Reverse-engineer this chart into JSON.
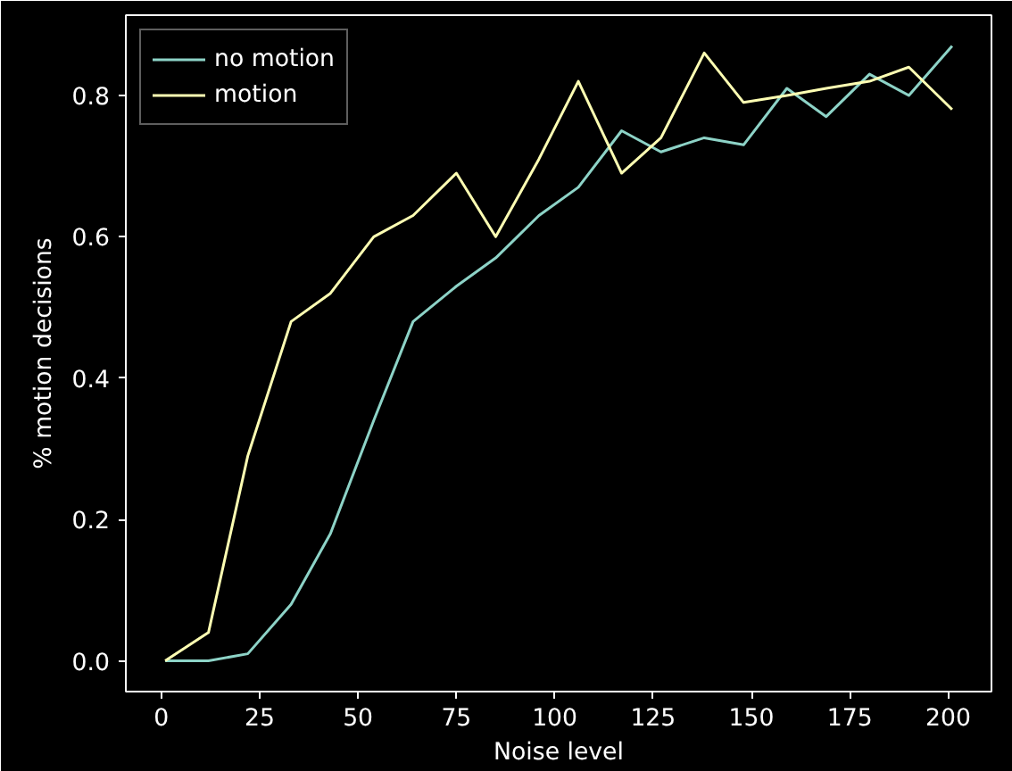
{
  "chart_data": {
    "type": "line",
    "xlabel": "Noise level",
    "ylabel": "% motion decisions",
    "x": [
      1,
      12,
      22,
      33,
      43,
      54,
      64,
      75,
      85,
      96,
      106,
      117,
      127,
      138,
      148,
      159,
      169,
      180,
      190,
      201
    ],
    "series": [
      {
        "name": "no motion",
        "color": "#8dd3c7",
        "values": [
          0,
          0,
          0.01,
          0.08,
          0.18,
          0.34,
          0.48,
          0.53,
          0.57,
          0.63,
          0.67,
          0.75,
          0.72,
          0.74,
          0.73,
          0.81,
          0.77,
          0.83,
          0.8,
          0.87
        ]
      },
      {
        "name": "motion",
        "color": "#feffb3",
        "values": [
          0,
          0.04,
          0.29,
          0.48,
          0.52,
          0.6,
          0.63,
          0.69,
          0.6,
          0.71,
          0.82,
          0.69,
          0.74,
          0.86,
          0.79,
          0.8,
          0.81,
          0.82,
          0.84,
          0.78
        ]
      }
    ],
    "xlim": [
      -9,
      211
    ],
    "ylim": [
      -0.0435,
      0.9135
    ],
    "xticks": [
      0,
      25,
      50,
      75,
      100,
      125,
      150,
      175,
      200
    ],
    "yticks": [
      {
        "value": 0,
        "label": "0.0"
      },
      {
        "value": 0.2,
        "label": "0.2"
      },
      {
        "value": 0.4,
        "label": "0.4"
      },
      {
        "value": 0.6,
        "label": "0.6"
      },
      {
        "value": 0.8,
        "label": "0.8"
      }
    ],
    "grid": false,
    "legend": "top left",
    "line_style": "solid",
    "marker": "none"
  }
}
